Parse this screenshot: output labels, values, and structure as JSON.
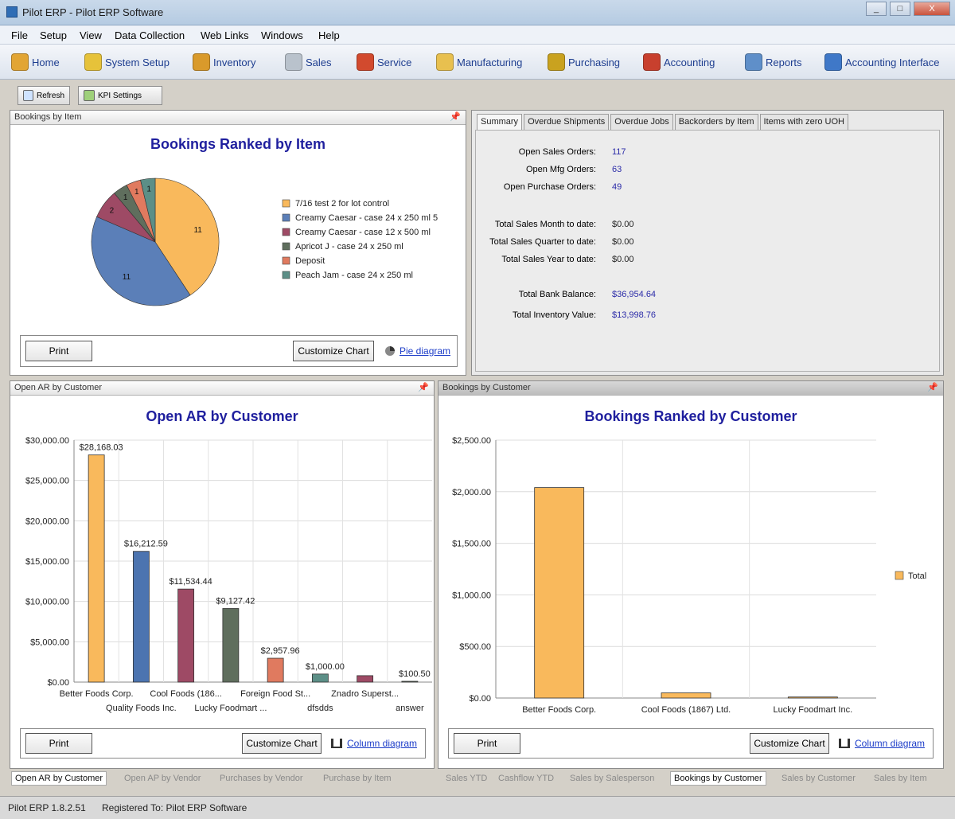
{
  "window": {
    "title": "Pilot ERP - Pilot ERP Software",
    "min": "_",
    "max": "□",
    "close": "X"
  },
  "menu": [
    "File",
    "Setup",
    "View",
    "Data Collection",
    "Web Links",
    "Windows",
    "Help"
  ],
  "toolbar": [
    {
      "label": "Home",
      "icon": "home-icon",
      "color": "#e2a534"
    },
    {
      "label": "System Setup",
      "icon": "gear-icon",
      "color": "#e6c23a"
    },
    {
      "label": "Inventory",
      "icon": "box-icon",
      "color": "#d99a2b"
    },
    {
      "label": "Sales",
      "icon": "gears-icon",
      "color": "#b9c2cc"
    },
    {
      "label": "Service",
      "icon": "wrench-icon",
      "color": "#d24a2e"
    },
    {
      "label": "Manufacturing",
      "icon": "factory-icon",
      "color": "#e8c04f"
    },
    {
      "label": "Purchasing",
      "icon": "cart-icon",
      "color": "#c9a21f"
    },
    {
      "label": "Accounting",
      "icon": "books-icon",
      "color": "#c8402e"
    },
    {
      "label": "Reports",
      "icon": "report-icon",
      "color": "#5f8fc9"
    },
    {
      "label": "Accounting Interface",
      "icon": "grid-icon",
      "color": "#3f78c8"
    }
  ],
  "subtoolbar": {
    "refresh": "Refresh",
    "kpi": "KPI Settings"
  },
  "bookings_item": {
    "header": "Bookings by Item",
    "title": "Bookings Ranked by Item",
    "print": "Print",
    "customize": "Customize Chart",
    "diagram": "Pie diagram"
  },
  "summary": {
    "tabs": [
      "Summary",
      "Overdue Shipments",
      "Overdue Jobs",
      "Backorders by Item",
      "Items with zero UOH"
    ],
    "rows": [
      {
        "label": "Open Sales Orders:",
        "value": "117",
        "color": "blue"
      },
      {
        "label": "Open Mfg Orders:",
        "value": "63",
        "color": "blue"
      },
      {
        "label": "Open Purchase Orders:",
        "value": "49",
        "color": "blue"
      },
      {
        "label": "Total Sales Month to date:",
        "value": "$0.00",
        "color": "black"
      },
      {
        "label": "Total Sales Quarter to date:",
        "value": "$0.00",
        "color": "black"
      },
      {
        "label": "Total Sales Year to date:",
        "value": "$0.00",
        "color": "black"
      },
      {
        "label": "Total Bank Balance:",
        "value": "$36,954.64",
        "color": "blue"
      },
      {
        "label": "Total Inventory Value:",
        "value": "$13,998.76",
        "color": "blue"
      }
    ]
  },
  "open_ar": {
    "header": "Open AR by Customer",
    "title": "Open AR by Customer",
    "print": "Print",
    "customize": "Customize Chart",
    "diagram": "Column diagram"
  },
  "bookings_customer": {
    "header": "Bookings by Customer",
    "title": "Bookings Ranked by Customer",
    "print": "Print",
    "customize": "Customize Chart",
    "diagram": "Column diagram"
  },
  "bottom_tabs_left": [
    "Open AR by Customer",
    "Open AP by Vendor",
    "Purchases by Vendor",
    "Purchase by Item"
  ],
  "bottom_tabs_right": [
    "Sales YTD",
    "Cashflow YTD",
    "Sales by Salesperson",
    "Bookings by Customer",
    "Sales by Customer",
    "Sales by Item"
  ],
  "status": {
    "version": "Pilot ERP 1.8.2.51",
    "registered": "Registered To: Pilot ERP Software"
  },
  "chart_data": [
    {
      "type": "pie",
      "title": "Bookings Ranked by Item",
      "categories": [
        "7/16 test 2 for lot control",
        "Creamy Caesar - case 24 x 250 ml 5",
        "Creamy Caesar - case 12 x 500 ml",
        "Apricot J - case 24 x 250 ml",
        "Deposit",
        "Peach Jam - case 24 x 250 ml"
      ],
      "values": [
        11,
        11,
        2,
        1,
        1,
        1
      ],
      "colors": [
        "#f9b95c",
        "#5b7fb8",
        "#9e4a65",
        "#5f6e5d",
        "#e07a5f",
        "#5c8f87"
      ]
    },
    {
      "type": "bar",
      "title": "Open AR by Customer",
      "categories": [
        "Better Foods Corp.",
        "Quality Foods Inc.",
        "Cool Foods (186...",
        "Lucky Foodmart ...",
        "Foreign Food St...",
        "dfsdds",
        "Znadro Superst...",
        "answer"
      ],
      "values": [
        28168.03,
        16212.59,
        11534.44,
        9127.42,
        2957.96,
        1000.0,
        800,
        100.5
      ],
      "labels": [
        "$28,168.03",
        "$16,212.59",
        "$11,534.44",
        "$9,127.42",
        "$2,957.96",
        "$1,000.00",
        "",
        "$100.50"
      ],
      "colors": [
        "#f9b95c",
        "#4c74b0",
        "#9e4a65",
        "#5f6e5d",
        "#e07a5f",
        "#5c8f87",
        "#9e4a65",
        "#5f6e5d"
      ],
      "yticks": [
        "$0.00",
        "$5,000.00",
        "$10,000.00",
        "$15,000.00",
        "$20,000.00",
        "$25,000.00",
        "$30,000.00"
      ],
      "ylim": [
        0,
        30000
      ]
    },
    {
      "type": "bar",
      "title": "Bookings Ranked by Customer",
      "categories": [
        "Better Foods Corp.",
        "Cool Foods (1867) Ltd.",
        "Lucky Foodmart Inc."
      ],
      "series": [
        {
          "name": "Total",
          "values": [
            2040,
            50,
            10
          ]
        }
      ],
      "colors": [
        "#f9b95c"
      ],
      "yticks": [
        "$0.00",
        "$500.00",
        "$1,000.00",
        "$1,500.00",
        "$2,000.00",
        "$2,500.00"
      ],
      "ylim": [
        0,
        2500
      ]
    }
  ]
}
